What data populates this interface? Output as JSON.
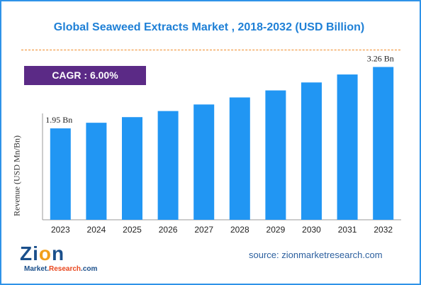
{
  "chart_data": {
    "type": "bar",
    "title": "Global Seaweed Extracts Market , 2018-2032 (USD Billion)",
    "ylabel": "Revenue (USD Mn/Bn)",
    "categories": [
      "2023",
      "2024",
      "2025",
      "2026",
      "2027",
      "2028",
      "2029",
      "2030",
      "2031",
      "2032"
    ],
    "values": [
      1.95,
      2.07,
      2.19,
      2.32,
      2.46,
      2.61,
      2.76,
      2.93,
      3.1,
      3.26
    ],
    "ylim": [
      0,
      3.6
    ],
    "bar_color": "#2196f3",
    "annotations": {
      "first": "1.95 Bn",
      "last": "3.26 Bn"
    },
    "grid": false
  },
  "cagr": {
    "label": "CAGR :  6.00%",
    "color": "#5b2a86"
  },
  "source": "source: zionmarketresearch.com",
  "logo": {
    "main_a": "Zi",
    "main_o": "o",
    "main_b": "n",
    "sub_a": "Market.",
    "sub_b": "Research",
    "sub_c": ".com"
  },
  "colors": {
    "title": "#1f80d6",
    "border": "#2f93e8",
    "divider": "#f08a24"
  }
}
